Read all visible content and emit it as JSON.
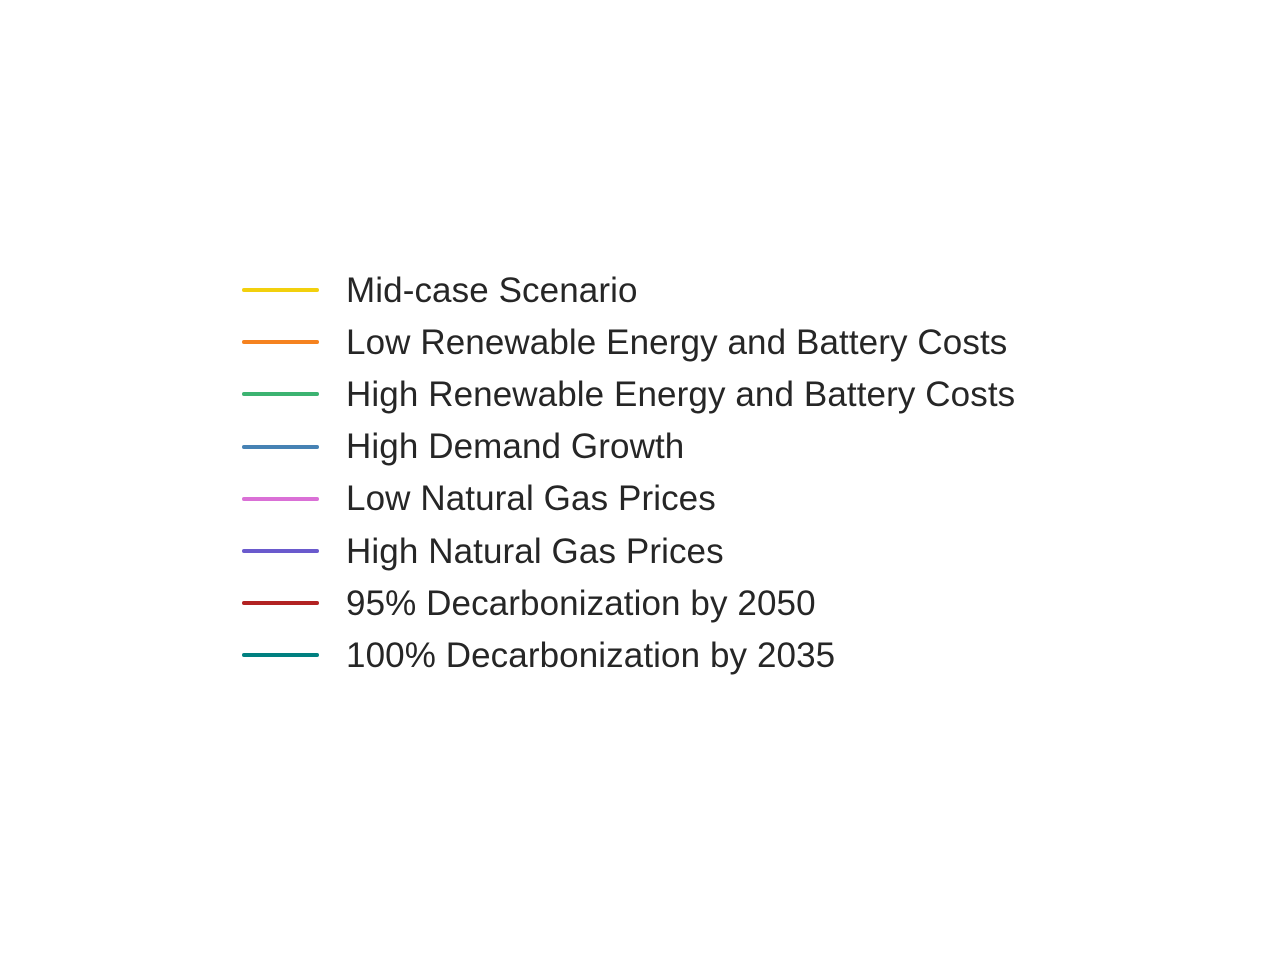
{
  "chart_data": {
    "type": "line",
    "title": "",
    "legend_placement": "center",
    "series": [
      {
        "name": "Mid-case Scenario",
        "color": "#F2D00D"
      },
      {
        "name": "Low Renewable Energy and Battery Costs",
        "color": "#F5821F"
      },
      {
        "name": "High Renewable Energy and Battery Costs",
        "color": "#3CB371"
      },
      {
        "name": "High Demand Growth",
        "color": "#4682B4"
      },
      {
        "name": "Low Natural Gas Prices",
        "color": "#DA70D6"
      },
      {
        "name": "High Natural Gas Prices",
        "color": "#6A5ACD"
      },
      {
        "name": "95% Decarbonization by 2050",
        "color": "#B22222"
      },
      {
        "name": "100% Decarbonization by 2035",
        "color": "#008080"
      }
    ]
  }
}
